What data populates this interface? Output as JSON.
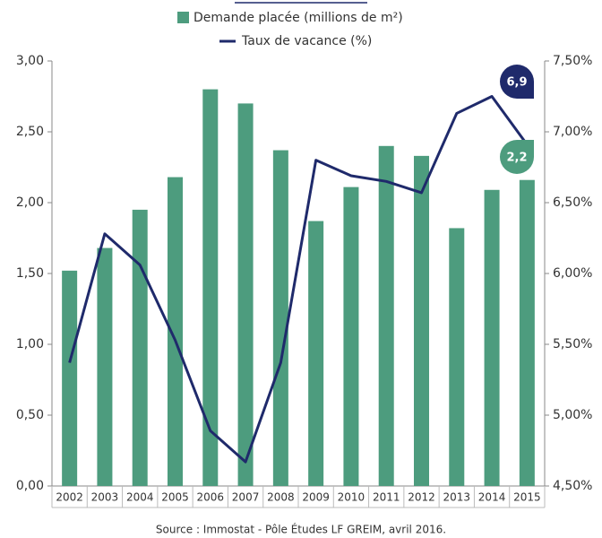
{
  "chart_data": {
    "type": "bar-line",
    "categories": [
      "2002",
      "2003",
      "2004",
      "2005",
      "2006",
      "2007",
      "2008",
      "2009",
      "2010",
      "2011",
      "2012",
      "2013",
      "2014",
      "2015"
    ],
    "series": [
      {
        "name": "Demande placée (millions de m²)",
        "type": "bar",
        "color": "#4d9c7e",
        "values": [
          1.52,
          1.68,
          1.95,
          2.18,
          2.8,
          2.7,
          2.37,
          1.87,
          2.11,
          2.4,
          2.33,
          1.82,
          2.09,
          2.16
        ]
      },
      {
        "name": "Taux de vacance (%)",
        "type": "line",
        "axis": "y2",
        "color": "#1f2a6b",
        "values": [
          5.37,
          6.28,
          6.06,
          5.53,
          4.89,
          4.67,
          5.37,
          6.8,
          6.69,
          6.65,
          6.57,
          7.13,
          7.25,
          6.91
        ]
      }
    ],
    "ylim": [
      0,
      3
    ],
    "yticks": [
      {
        "value": 0,
        "label": "0,00"
      },
      {
        "value": 0.5,
        "label": "0,50"
      },
      {
        "value": 1,
        "label": "1,00"
      },
      {
        "value": 1.5,
        "label": "1,50"
      },
      {
        "value": 2,
        "label": "2,00"
      },
      {
        "value": 2.5,
        "label": "2,50"
      },
      {
        "value": 3,
        "label": "3,00"
      }
    ],
    "y2lim": [
      4.5,
      7.5
    ],
    "y2ticks": [
      {
        "value": 4.5,
        "label": "4,50%"
      },
      {
        "value": 5,
        "label": "5,00%"
      },
      {
        "value": 5.5,
        "label": "5,50%"
      },
      {
        "value": 6,
        "label": "6,00%"
      },
      {
        "value": 6.5,
        "label": "6,50%"
      },
      {
        "value": 7,
        "label": "7,00%"
      },
      {
        "value": 7.5,
        "label": "7,50%"
      }
    ],
    "annotations": [
      {
        "text": "6,9"
      },
      {
        "text": "2,2"
      }
    ],
    "source": "Source : Immostat - Pôle Études LF GREIM, avril 2016."
  }
}
